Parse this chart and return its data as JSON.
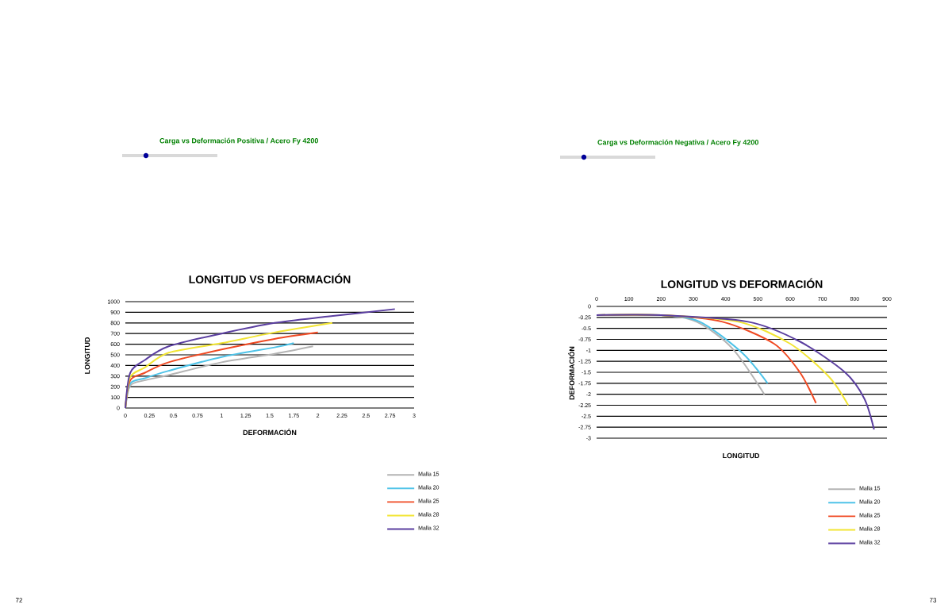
{
  "chart_data": [
    {
      "type": "line",
      "title": "LONGITUD VS DEFORMACIÓN",
      "subtitle": "Carga vs Deformación Positiva / Acero Fy 4200",
      "xlabel": "DEFORMACIÓN",
      "ylabel": "LONGITUD",
      "annotations": [
        "72"
      ],
      "xlim": [
        0,
        3
      ],
      "xticks": [
        0,
        0.25,
        0.5,
        0.75,
        1,
        1.25,
        1.5,
        1.75,
        2,
        2.25,
        2.5,
        2.75,
        3
      ],
      "ylim": [
        0,
        1000
      ],
      "yticks": [
        0,
        100,
        200,
        300,
        400,
        500,
        600,
        700,
        800,
        900,
        1000
      ],
      "grid": "y",
      "legend": "bottom right",
      "line_style": "solid",
      "series": [
        {
          "name": "Malla 15",
          "color": "#b4b4b4",
          "x": [
            0,
            0.05,
            0.2,
            0.45,
            1.0,
            1.55,
            1.95
          ],
          "values": [
            0,
            210,
            260,
            310,
            430,
            510,
            580
          ]
        },
        {
          "name": "Malla 20",
          "color": "#4fc3e8",
          "x": [
            0,
            0.05,
            0.2,
            0.45,
            1.0,
            1.55,
            1.75
          ],
          "values": [
            0,
            230,
            280,
            350,
            480,
            570,
            610
          ]
        },
        {
          "name": "Malla 25",
          "color": "#f04a23",
          "x": [
            0,
            0.05,
            0.2,
            0.45,
            1.0,
            1.55,
            2.0
          ],
          "values": [
            0,
            260,
            330,
            430,
            550,
            650,
            710
          ]
        },
        {
          "name": "Malla 28",
          "color": "#f2e533",
          "x": [
            0,
            0.05,
            0.2,
            0.45,
            1.0,
            1.55,
            2.15
          ],
          "values": [
            0,
            290,
            380,
            520,
            610,
            710,
            800
          ]
        },
        {
          "name": "Malla 32",
          "color": "#5b3fa0",
          "x": [
            0,
            0.05,
            0.2,
            0.45,
            1.0,
            1.55,
            2.1,
            2.8
          ],
          "values": [
            0,
            330,
            450,
            580,
            700,
            800,
            860,
            930
          ]
        }
      ]
    },
    {
      "type": "line",
      "title": "LONGITUD VS DEFORMACIÓN",
      "subtitle": "Carga vs Deformación Negativa / Acero Fy 4200",
      "xlabel": "LONGITUD",
      "ylabel": "DEFORMACIÓN",
      "annotations": [
        "73"
      ],
      "xlim": [
        0,
        900
      ],
      "xticks": [
        0,
        100,
        200,
        300,
        400,
        500,
        600,
        700,
        800,
        900
      ],
      "ylim": [
        -3,
        0
      ],
      "yticks": [
        0,
        -0.25,
        -0.5,
        -0.75,
        -1,
        -1.25,
        -1.5,
        -1.75,
        -2,
        -2.25,
        -2.5,
        -2.75,
        -3
      ],
      "grid": "y",
      "legend": "bottom right",
      "line_style": "solid",
      "series": [
        {
          "name": "Malla 15",
          "color": "#b4b4b4",
          "x": [
            0,
            200,
            310,
            420,
            520
          ],
          "values": [
            -0.2,
            -0.2,
            -0.35,
            -0.95,
            -2
          ]
        },
        {
          "name": "Malla 20",
          "color": "#4fc3e8",
          "x": [
            0,
            200,
            320,
            450,
            530
          ],
          "values": [
            -0.2,
            -0.2,
            -0.35,
            -1.05,
            -1.75
          ]
        },
        {
          "name": "Malla 25",
          "color": "#f04a23",
          "x": [
            0,
            200,
            390,
            550,
            630,
            680
          ],
          "values": [
            -0.2,
            -0.2,
            -0.35,
            -0.85,
            -1.5,
            -2.2
          ]
        },
        {
          "name": "Malla 28",
          "color": "#f2e533",
          "x": [
            0,
            200,
            440,
            600,
            720,
            780
          ],
          "values": [
            -0.2,
            -0.2,
            -0.35,
            -0.85,
            -1.6,
            -2.25
          ]
        },
        {
          "name": "Malla 32",
          "color": "#5b3fa0",
          "x": [
            0,
            200,
            470,
            630,
            770,
            830,
            860
          ],
          "values": [
            -0.2,
            -0.2,
            -0.35,
            -0.8,
            -1.5,
            -2.1,
            -2.8
          ]
        }
      ]
    }
  ]
}
